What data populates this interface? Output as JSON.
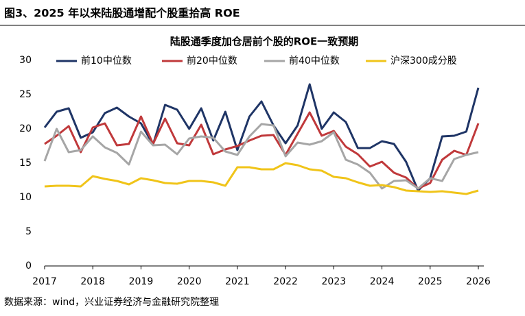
{
  "header": {
    "title": "图3、2025 年以来陆股通增配个股重拾高 ROE"
  },
  "chart_data": {
    "type": "line",
    "title": "陆股通季度加仓居前个股的ROE一致预期",
    "x": [
      2017,
      2017.25,
      2017.5,
      2017.75,
      2018,
      2018.25,
      2018.5,
      2018.75,
      2019,
      2019.25,
      2019.5,
      2019.75,
      2020,
      2020.25,
      2020.5,
      2020.75,
      2021,
      2021.25,
      2021.5,
      2021.75,
      2022,
      2022.25,
      2022.5,
      2022.75,
      2023,
      2023.25,
      2023.5,
      2023.75,
      2024,
      2024.25,
      2024.5,
      2024.75,
      2025,
      2025.25,
      2025.5,
      2025.75,
      2026
    ],
    "xlim": [
      2017,
      2026
    ],
    "xticks": [
      2017,
      2018,
      2019,
      2020,
      2021,
      2022,
      2023,
      2024,
      2025,
      2026
    ],
    "ylim": [
      0,
      30
    ],
    "yticks": [
      0,
      5,
      10,
      15,
      20,
      25,
      30
    ],
    "grid": false,
    "legend": "top",
    "series": [
      {
        "name": "前10中位数",
        "color": "#1f3566",
        "values": [
          20.2,
          22.5,
          23.0,
          18.7,
          19.5,
          22.3,
          23.1,
          21.8,
          20.8,
          17.7,
          23.5,
          22.8,
          20.0,
          23.0,
          18.3,
          22.5,
          16.9,
          21.8,
          24.0,
          20.5,
          17.9,
          20.5,
          26.5,
          20.0,
          22.4,
          21.0,
          17.2,
          17.2,
          18.2,
          17.8,
          15.2,
          11.0,
          12.8,
          18.9,
          19.0,
          19.6,
          26.0
        ]
      },
      {
        "name": "前20中位数",
        "color": "#c0393b",
        "values": [
          17.8,
          19.0,
          20.4,
          16.6,
          20.2,
          20.8,
          17.6,
          17.8,
          21.8,
          17.8,
          21.5,
          17.9,
          17.6,
          20.6,
          16.3,
          17.0,
          17.5,
          18.3,
          19.0,
          19.1,
          16.2,
          19.3,
          22.4,
          19.0,
          19.7,
          17.4,
          16.3,
          14.5,
          15.2,
          13.6,
          12.9,
          11.3,
          12.1,
          15.5,
          16.8,
          16.2,
          20.8
        ]
      },
      {
        "name": "前40中位数",
        "color": "#a6a6a6",
        "values": [
          15.3,
          20.0,
          16.6,
          16.9,
          18.9,
          17.3,
          16.5,
          14.8,
          19.6,
          17.6,
          17.7,
          16.3,
          18.6,
          18.9,
          18.7,
          16.7,
          16.2,
          18.9,
          20.7,
          20.5,
          16.0,
          18.0,
          17.7,
          18.2,
          19.5,
          15.5,
          14.8,
          13.6,
          11.3,
          12.4,
          12.5,
          11.3,
          12.8,
          12.4,
          15.6,
          16.2,
          16.6
        ]
      },
      {
        "name": "沪深300成分股",
        "color": "#f0c419",
        "values": [
          11.6,
          11.7,
          11.7,
          11.6,
          13.1,
          12.7,
          12.4,
          11.9,
          12.8,
          12.5,
          12.1,
          12.0,
          12.4,
          12.4,
          12.2,
          11.7,
          14.4,
          14.4,
          14.1,
          14.1,
          15.0,
          14.7,
          14.1,
          13.9,
          13.0,
          12.8,
          12.2,
          11.7,
          11.8,
          11.5,
          11.0,
          10.9,
          10.8,
          10.9,
          10.7,
          10.5,
          11.0
        ]
      }
    ]
  },
  "source": "数据来源：wind，兴业证券经济与金融研究院整理"
}
